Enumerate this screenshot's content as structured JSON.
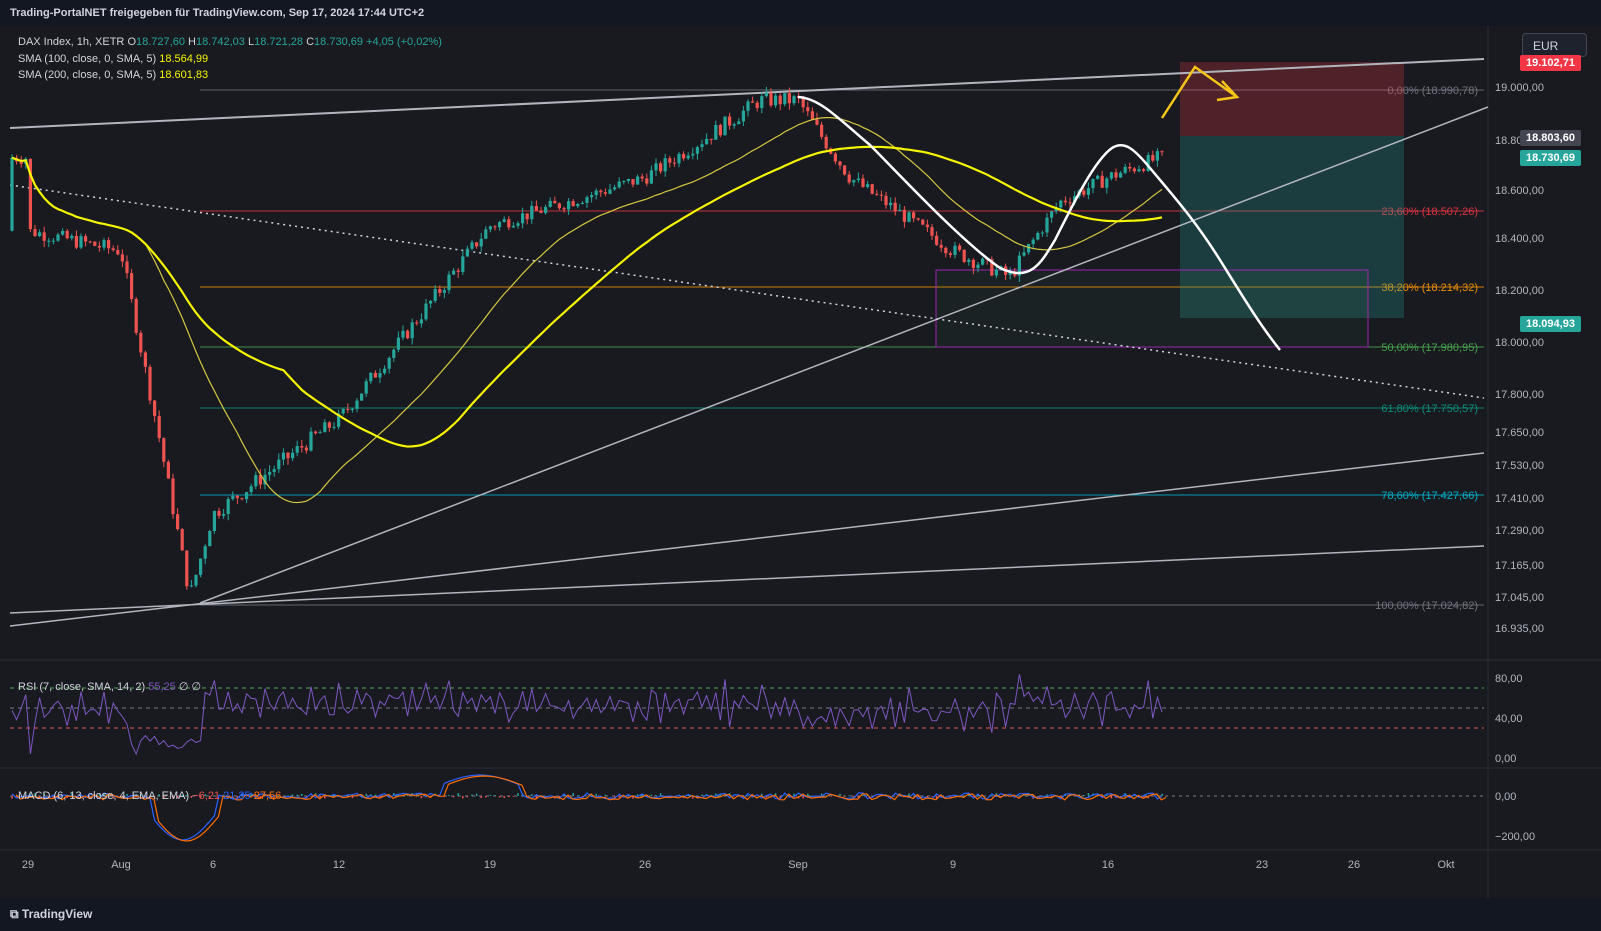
{
  "header": {
    "share_text": "Trading-PortalNET freigegeben für TradingView.com, Sep 17, 2024 17:44 UTC+2"
  },
  "legend": {
    "symbol": "DAX Index, 1h, XETR",
    "o_label": "O",
    "o_value": "18.727,60",
    "h_label": "H",
    "h_value": "18.742,03",
    "l_label": "L",
    "l_value": "18.721,28",
    "c_label": "C",
    "c_value": "18.730,69",
    "change": "+4,05 (+0,02%)",
    "sma100_label": "SMA (100, close, 0, SMA, 5)",
    "sma100_value": "18.564,99",
    "sma200_label": "SMA (200, close, 0, SMA, 5)",
    "sma200_value": "18.601,83"
  },
  "currency": "EUR",
  "price_tags": {
    "target": "19.102,71",
    "entry": "18.803,60",
    "current": "18.730,69",
    "stop": "18.094,93"
  },
  "rsi_legend": {
    "label": "RSI (7, close, SMA, 14, 2)",
    "value": "55,25",
    "ext1": "∅",
    "ext2": "∅"
  },
  "macd_legend": {
    "label": "MACD (6, 13, close, 4, EMA, EMA)",
    "hist": "−6,21",
    "macd": "21,35",
    "signal": "27,56"
  },
  "footer": {
    "brand": "TradingView"
  },
  "colors": {
    "background": "#181a20",
    "up": "#26a69a",
    "down": "#ef5350",
    "sma100": "#f5f500",
    "sma200": "#d4c640",
    "rsi": "#7e57c2",
    "macd": "#2962ff",
    "signal": "#ff6d00"
  },
  "chart_data": {
    "type": "candlestick",
    "y_axis_labels": [
      "19.000,00",
      "18.800,00",
      "18.600,00",
      "18.400,00",
      "18.200,00",
      "18.000,00",
      "17.800,00",
      "17.650,00",
      "17.530,00",
      "17.410,00",
      "17.290,00",
      "17.165,00",
      "17.045,00",
      "16.935,00"
    ],
    "x_axis_labels": [
      "29",
      "Aug",
      "6",
      "12",
      "19",
      "26",
      "Sep",
      "9",
      "16",
      "23",
      "26",
      "Okt"
    ],
    "fibonacci": [
      {
        "level": "0,00%",
        "price": "(18.990,78)"
      },
      {
        "level": "23,60%",
        "price": "(18.507,26)"
      },
      {
        "level": "38,20%",
        "price": "(18.214,32)"
      },
      {
        "level": "50,00%",
        "price": "(17.980,95)"
      },
      {
        "level": "61,80%",
        "price": "(17.750,57)"
      },
      {
        "level": "78,60%",
        "price": "(17.427,66)"
      },
      {
        "level": "100,00%",
        "price": "(17.024,82)"
      }
    ],
    "rsi_axis_labels": [
      "80,00",
      "40,00",
      "0,00"
    ],
    "macd_axis_labels": [
      "0,00",
      "−200,00"
    ],
    "ohlc_anchor_points": [
      {
        "x": "29",
        "y": 18430
      },
      {
        "x": "Aug",
        "y": 18350
      },
      {
        "x": "5",
        "y": 17050
      },
      {
        "x": "6",
        "y": 17350
      },
      {
        "x": "12",
        "y": 17700
      },
      {
        "x": "16",
        "y": 18150
      },
      {
        "x": "19",
        "y": 18450
      },
      {
        "x": "26",
        "y": 18650
      },
      {
        "x": "30",
        "y": 18950
      },
      {
        "x": "Sep",
        "y": 18950
      },
      {
        "x": "4",
        "y": 18650
      },
      {
        "x": "9",
        "y": 18350
      },
      {
        "x": "11",
        "y": 18250
      },
      {
        "x": "13",
        "y": 18550
      },
      {
        "x": "16",
        "y": 18650
      },
      {
        "x": "17",
        "y": 18730
      }
    ]
  }
}
